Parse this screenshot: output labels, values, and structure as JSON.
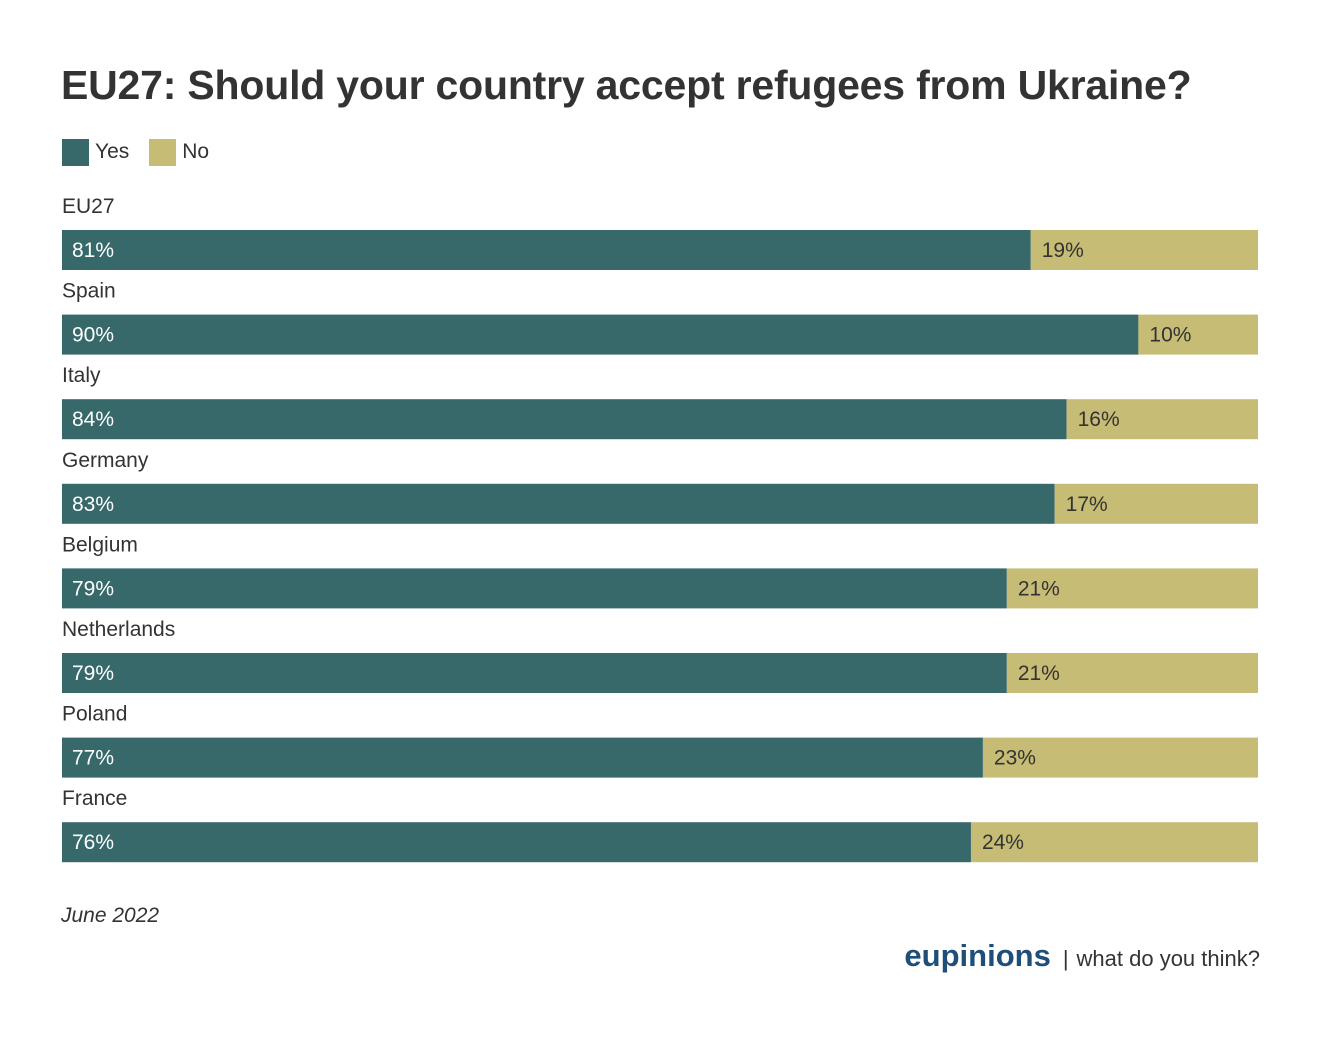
{
  "colors": {
    "yes": "#37686a",
    "no": "#c6bc75",
    "yes_text": "#ffffff",
    "no_text": "#333333",
    "brand": "#1f4e79"
  },
  "chart_data": {
    "type": "bar",
    "orientation": "horizontal",
    "stacked": true,
    "title": "EU27: Should your country accept refugees from Ukraine?",
    "legend_position": "top-left",
    "categories": [
      "EU27",
      "Spain",
      "Italy",
      "Germany",
      "Belgium",
      "Netherlands",
      "Poland",
      "France"
    ],
    "series": [
      {
        "name": "Yes",
        "values": [
          81,
          90,
          84,
          83,
          79,
          79,
          77,
          76
        ]
      },
      {
        "name": "No",
        "values": [
          19,
          10,
          16,
          17,
          21,
          21,
          23,
          24
        ]
      }
    ],
    "value_suffix": "%",
    "xlim": [
      0,
      100
    ],
    "grid": false
  },
  "footer": {
    "date": "June 2022",
    "brand": "eupinions",
    "separator": "|",
    "tagline": "what do you think?"
  }
}
